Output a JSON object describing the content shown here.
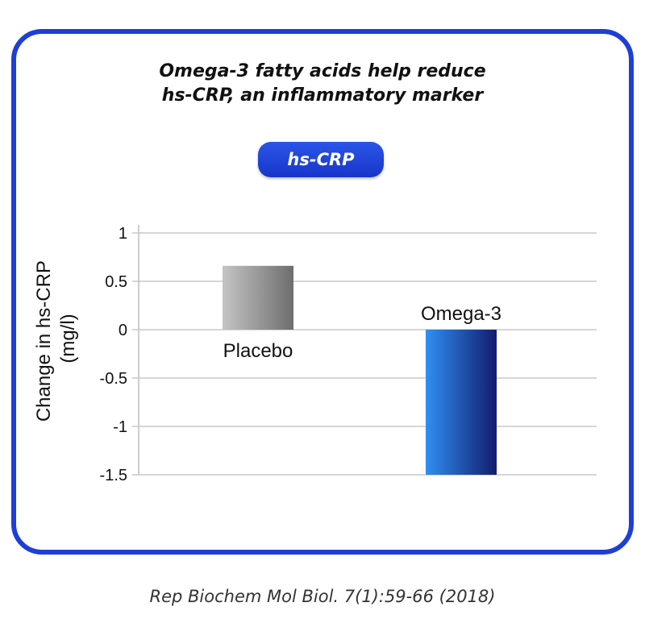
{
  "title": {
    "line1": "Omega-3 fatty acids help reduce",
    "line2": "hs-CRP, an inflammatory marker"
  },
  "badge": {
    "label": "hs-CRP"
  },
  "chart_data": {
    "type": "bar",
    "categories": [
      "Placebo",
      "Omega-3"
    ],
    "values": [
      0.66,
      -1.5
    ],
    "ylabel_lines": [
      "Change in hs-CRP",
      "(mg/l)"
    ],
    "ylim": [
      -1.5,
      1
    ],
    "yticks": [
      1,
      0.5,
      0,
      -0.5,
      -1,
      -1.5
    ],
    "ytick_labels": [
      "1",
      "0.5",
      "0",
      "-0.5",
      "-1",
      "-1.5"
    ],
    "grid": true,
    "colors": {
      "Placebo": [
        "#c4c4c4",
        "#6e6e6e"
      ],
      "Omega-3": [
        "#2f8ff2",
        "#121c6e"
      ]
    }
  },
  "citation": "Rep Biochem Mol Biol. 7(1):59-66 (2018)"
}
